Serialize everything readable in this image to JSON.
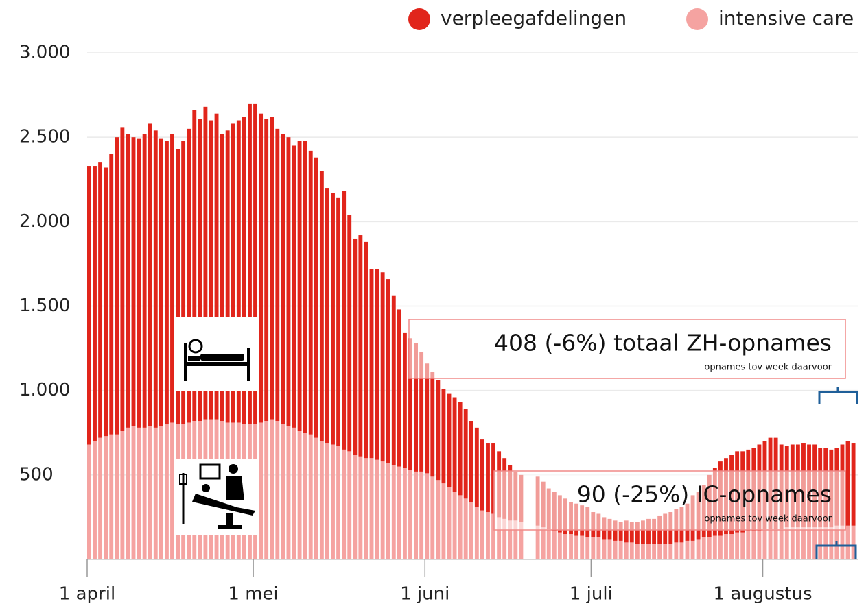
{
  "chart_data": {
    "type": "stacked_bar",
    "categories": [
      "1 april",
      null,
      null,
      null,
      null,
      null,
      null,
      null,
      null,
      null,
      null,
      null,
      null,
      null,
      null,
      null,
      null,
      null,
      null,
      null,
      null,
      null,
      null,
      null,
      null,
      null,
      null,
      null,
      null,
      null,
      "1 mei",
      null,
      null,
      null,
      null,
      null,
      null,
      null,
      null,
      null,
      null,
      null,
      null,
      null,
      null,
      null,
      null,
      null,
      null,
      null,
      null,
      null,
      null,
      null,
      null,
      null,
      null,
      null,
      null,
      null,
      null,
      "1 juni",
      null,
      null,
      null,
      null,
      null,
      null,
      null,
      null,
      null,
      null,
      null,
      null,
      null,
      null,
      null,
      null,
      null,
      null,
      null,
      null,
      null,
      null,
      null,
      null,
      null,
      null,
      null,
      null,
      null,
      "1 juli",
      null,
      null,
      null,
      null,
      null,
      null,
      null,
      null,
      null,
      null,
      null,
      null,
      null,
      null,
      null,
      null,
      null,
      null,
      null,
      null,
      null,
      null,
      null,
      null,
      null,
      null,
      null,
      null,
      null,
      null,
      "1 augustus",
      null,
      null,
      null,
      null,
      null,
      null,
      null,
      null,
      null,
      null,
      null,
      null,
      null,
      null,
      null,
      null
    ],
    "series": [
      {
        "name": "verpleegafdelingen",
        "color": "#e1251b",
        "values": [
          1650,
          1630,
          1630,
          1590,
          1660,
          1760,
          1800,
          1740,
          1710,
          1710,
          1740,
          1790,
          1760,
          1700,
          1680,
          1710,
          1630,
          1680,
          1740,
          1840,
          1790,
          1850,
          1770,
          1810,
          1700,
          1730,
          1770,
          1790,
          1820,
          1900,
          1900,
          1830,
          1790,
          1790,
          1730,
          1720,
          1710,
          1670,
          1720,
          1730,
          1680,
          1660,
          1600,
          1510,
          1490,
          1470,
          1530,
          1400,
          1280,
          1310,
          1280,
          1120,
          1130,
          1120,
          1090,
          1000,
          930,
          800,
          780,
          760,
          710,
          650,
          620,
          590,
          560,
          550,
          560,
          550,
          530,
          480,
          470,
          420,
          410,
          420,
          390,
          360,
          330,
          290,
          280,
          null,
          null,
          290,
          270,
          240,
          230,
          220,
          210,
          190,
          190,
          180,
          180,
          150,
          140,
          130,
          120,
          120,
          110,
          130,
          120,
          130,
          140,
          150,
          150,
          170,
          180,
          190,
          200,
          210,
          220,
          270,
          280,
          310,
          370,
          400,
          440,
          450,
          470,
          480,
          480,
          480,
          490,
          510,
          520,
          540,
          540,
          500,
          480,
          490,
          490,
          500,
          490,
          490,
          470,
          470,
          460,
          460,
          480,
          500,
          490
        ]
      },
      {
        "name": "intensive care",
        "color": "#f5a3a1",
        "values": [
          680,
          700,
          720,
          730,
          740,
          740,
          760,
          780,
          790,
          780,
          780,
          790,
          780,
          790,
          800,
          810,
          800,
          800,
          810,
          820,
          820,
          830,
          830,
          830,
          820,
          810,
          810,
          810,
          800,
          800,
          800,
          810,
          820,
          830,
          820,
          800,
          790,
          780,
          760,
          750,
          740,
          720,
          700,
          690,
          680,
          670,
          650,
          640,
          620,
          610,
          600,
          600,
          590,
          580,
          570,
          560,
          550,
          540,
          530,
          520,
          520,
          510,
          490,
          470,
          450,
          430,
          400,
          380,
          360,
          340,
          310,
          290,
          280,
          270,
          250,
          240,
          230,
          230,
          220,
          null,
          null,
          200,
          190,
          180,
          170,
          160,
          150,
          150,
          140,
          140,
          130,
          130,
          130,
          120,
          120,
          110,
          110,
          100,
          100,
          90,
          90,
          90,
          90,
          90,
          90,
          90,
          100,
          100,
          110,
          110,
          120,
          130,
          130,
          140,
          140,
          150,
          150,
          160,
          160,
          170,
          170,
          170,
          180,
          180,
          180,
          180,
          190,
          190,
          190,
          190,
          190,
          190,
          190,
          190,
          190,
          200,
          200,
          200,
          200
        ]
      }
    ],
    "ylim": [
      0,
      3000
    ],
    "yticks": [
      500,
      {
        "value": 1000,
        "label": "1.000"
      },
      {
        "value": 1500,
        "label": "1.500"
      },
      {
        "value": 2000,
        "label": "2.000"
      },
      {
        "value": 2500,
        "label": "2.500"
      },
      {
        "value": 3000,
        "label": "3.000"
      }
    ],
    "grid": true,
    "annotations": [
      {
        "text": "408 (-6%) totaal ZH-opnames",
        "subtext": "opnames tov week daarvoor"
      },
      {
        "text": "90 (-25%) IC-opnames",
        "subtext": "opnames tov week daarvoor"
      }
    ]
  }
}
